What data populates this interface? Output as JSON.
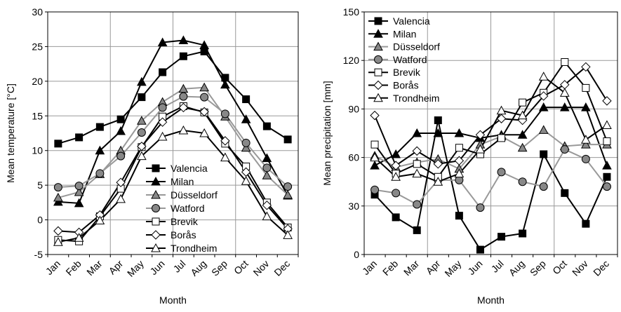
{
  "chart_data": [
    {
      "type": "line",
      "x_label": "Month",
      "y_label": "Mean temperature [°C]",
      "categories": [
        "Jan",
        "Feb",
        "Mar",
        "Apr",
        "May",
        "Jun",
        "Jul",
        "Aug",
        "Sep",
        "Oct",
        "Nov",
        "Dec"
      ],
      "ylim": [
        -5,
        30
      ],
      "yticks": [
        -5,
        0,
        5,
        10,
        15,
        20,
        25,
        30
      ],
      "grid": true,
      "legend_position": "lower center",
      "series": [
        {
          "name": "Valencia",
          "color": "#000000",
          "marker": "square",
          "marker_fill": "#000000",
          "values": [
            11,
            11.9,
            13.4,
            14.5,
            17.7,
            21.3,
            23.6,
            24.3,
            20.5,
            17.4,
            13.5,
            11.6
          ]
        },
        {
          "name": "Milan",
          "color": "#000000",
          "marker": "triangle",
          "marker_fill": "#000000",
          "values": [
            2.6,
            2.4,
            10,
            12.8,
            19.9,
            25.6,
            25.9,
            25.2,
            19.5,
            14.5,
            8.9,
            3.5
          ]
        },
        {
          "name": "Düsseldorf",
          "color": "#999999",
          "marker": "triangle",
          "marker_fill": "#888888",
          "values": [
            3.2,
            4,
            6.6,
            10,
            14.3,
            17,
            18.9,
            19.1,
            14.9,
            10.4,
            6.4,
            3.6
          ]
        },
        {
          "name": "Watford",
          "color": "#999999",
          "marker": "circle",
          "marker_fill": "#888888",
          "values": [
            4.7,
            4.9,
            6.7,
            9.2,
            12.6,
            16.2,
            17.8,
            17.7,
            15.3,
            11.1,
            7.5,
            4.8
          ]
        },
        {
          "name": "Brevik",
          "color": "#000000",
          "marker": "square",
          "marker_fill": "#ffffff",
          "values": [
            -2.9,
            -3.1,
            0.5,
            4.5,
            10.5,
            14.9,
            16.4,
            15.5,
            11,
            7.7,
            2.5,
            -1.1
          ]
        },
        {
          "name": "Borås",
          "color": "#000000",
          "marker": "diamond",
          "marker_fill": "#ffffff",
          "values": [
            -1.6,
            -1.8,
            0.7,
            5.4,
            10.6,
            14.1,
            16.2,
            15.6,
            11.4,
            6.9,
            2.1,
            -1.3
          ]
        },
        {
          "name": "Trondheim",
          "color": "#000000",
          "marker": "triangle",
          "marker_fill": "#ffffff",
          "values": [
            -3.2,
            -2.6,
            -0.1,
            3,
            9.2,
            12,
            12.9,
            12.5,
            9,
            5.6,
            0.5,
            -2.2
          ]
        }
      ]
    },
    {
      "type": "line",
      "x_label": "Month",
      "y_label": "Mean precipitation [mm]",
      "categories": [
        "Jan",
        "Feb",
        "Mar",
        "Apr",
        "May",
        "Jun",
        "Jul",
        "Aug",
        "Sep",
        "Oct",
        "Nov",
        "Dec"
      ],
      "ylim": [
        0,
        150
      ],
      "yticks": [
        0,
        30,
        60,
        90,
        120,
        150
      ],
      "grid": true,
      "legend_position": "upper left",
      "series": [
        {
          "name": "Valencia",
          "color": "#000000",
          "marker": "square",
          "marker_fill": "#000000",
          "values": [
            37,
            23,
            15,
            83,
            24,
            3,
            11,
            13,
            62,
            38,
            19,
            48
          ]
        },
        {
          "name": "Milan",
          "color": "#000000",
          "marker": "triangle",
          "marker_fill": "#000000",
          "values": [
            55,
            62,
            75,
            75,
            75,
            72,
            74,
            74,
            91,
            91,
            91,
            55
          ]
        },
        {
          "name": "Düsseldorf",
          "color": "#999999",
          "marker": "triangle",
          "marker_fill": "#888888",
          "values": [
            61,
            54,
            57,
            59,
            53,
            68,
            73,
            66,
            77,
            67,
            68,
            68
          ]
        },
        {
          "name": "Watford",
          "color": "#999999",
          "marker": "circle",
          "marker_fill": "#888888",
          "values": [
            40,
            38,
            31,
            46,
            46,
            29,
            51,
            45,
            42,
            65,
            59,
            42
          ]
        },
        {
          "name": "Brevik",
          "color": "#000000",
          "marker": "square",
          "marker_fill": "#ffffff",
          "values": [
            68,
            50,
            56,
            48,
            66,
            62,
            72,
            94,
            100,
            119,
            103,
            70
          ]
        },
        {
          "name": "Borås",
          "color": "#000000",
          "marker": "diamond",
          "marker_fill": "#ffffff",
          "values": [
            86,
            55,
            64,
            56,
            58,
            74,
            84,
            83,
            98,
            105,
            116,
            95
          ]
        },
        {
          "name": "Trondheim",
          "color": "#000000",
          "marker": "triangle",
          "marker_fill": "#ffffff",
          "values": [
            60,
            48,
            50,
            45,
            50,
            65,
            89,
            86,
            110,
            100,
            71,
            80
          ]
        }
      ]
    }
  ]
}
